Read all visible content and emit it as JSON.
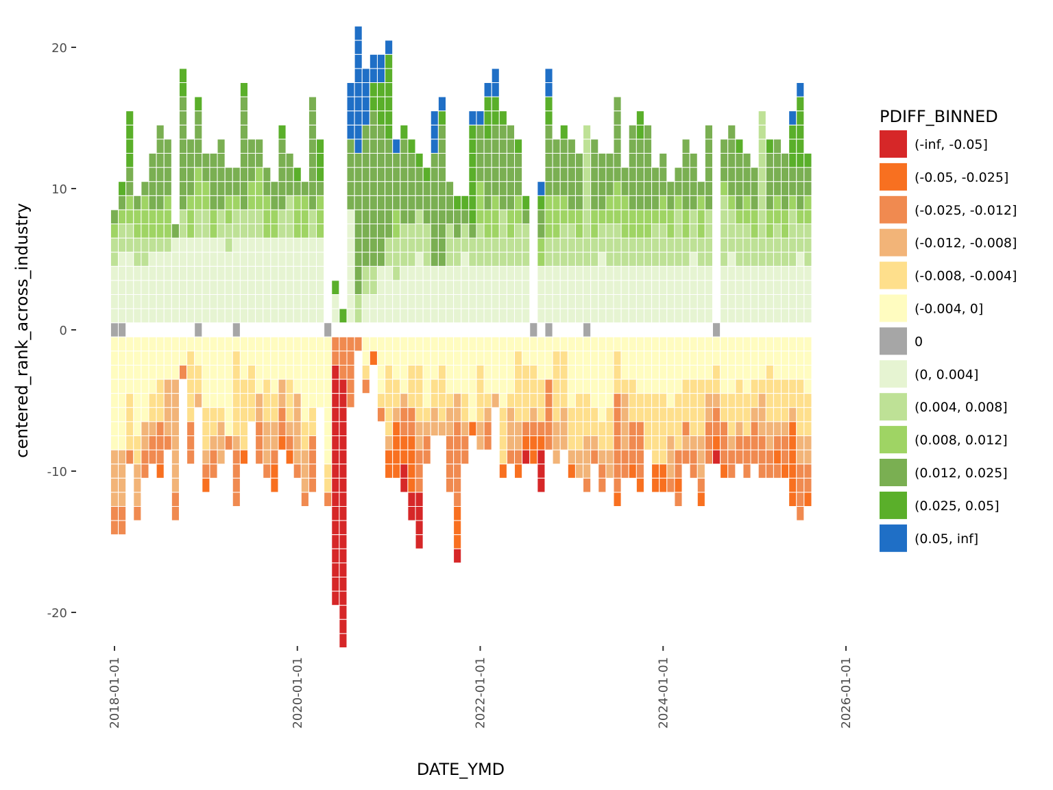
{
  "chart_data": {
    "type": "heatmap",
    "title": "",
    "xlabel": "DATE_YMD",
    "ylabel": "centered_rank_across_industry",
    "x_tick_labels": [
      "2018-01-01",
      "2020-01-01",
      "2022-01-01",
      "2024-01-01",
      "2026-01-01"
    ],
    "y_tick_labels": [
      "20",
      "10",
      "0",
      "-10",
      "-20"
    ],
    "y_ticks": [
      20,
      10,
      0,
      -10,
      -20
    ],
    "xlim": [
      "2018-01-01",
      "2026-01-01"
    ],
    "ylim": [
      -21,
      21
    ],
    "x_start": "2018-01-01",
    "x_end": "2025-08-01",
    "period": "monthly",
    "grid": false,
    "legend": {
      "title": "PDIFF_BINNED",
      "placement": "right",
      "bins": [
        {
          "label": "(-inf, -0.05]",
          "color": "#d62728"
        },
        {
          "label": "(-0.05, -0.025]",
          "color": "#f87020"
        },
        {
          "label": "(-0.025, -0.012]",
          "color": "#f08a50"
        },
        {
          "label": "(-0.012, -0.008]",
          "color": "#f2b478"
        },
        {
          "label": "(-0.008, -0.004]",
          "color": "#fedf8c"
        },
        {
          "label": "(-0.004, 0]",
          "color": "#fffcc0"
        },
        {
          "label": "0",
          "color": "#a6a6a6"
        },
        {
          "label": "(0, 0.004]",
          "color": "#e6f4d2"
        },
        {
          "label": "(0.004, 0.008]",
          "color": "#bee196"
        },
        {
          "label": "(0.008, 0.012]",
          "color": "#9fd464"
        },
        {
          "label": "(0.012, 0.025]",
          "color": "#7aaf52"
        },
        {
          "label": "(0.025, 0.05]",
          "color": "#5aaf2a"
        },
        {
          "label": "(0.05, inf]",
          "color": "#1f6fc6"
        }
      ]
    },
    "note": "Each monthly column stacks one cell per industry. Strings encode cell bins from the centre outward (positive stack upward, negative stack downward). Codes: a=(-inf,-0.05], b=(-0.05,-0.025], c=(-0.025,-0.012], d=(-0.012,-0.008], e=(-0.008,-0.004], f=(-0.004,0], z=0, g=(0,0.004], h=(0.004,0.008], i=(0.008,0.012], j=(0.012,0.025], k=(0.025,0.05], l=(0.05,inf].",
    "code_map": {
      "a": 0,
      "b": 1,
      "c": 2,
      "d": 3,
      "e": 4,
      "f": 5,
      "z": 6,
      "g": 7,
      "h": 8,
      "i": 9,
      "j": 10,
      "k": 11,
      "l": 12
    },
    "columns": [
      {
        "date": "2018-01",
        "zero": 1,
        "pos": "gggghhij",
        "neg": "ffffffffddddcc"
      },
      {
        "date": "2018-02",
        "zero": 1,
        "pos": "ggggghhijk",
        "neg": "ffffffffddddcc"
      },
      {
        "date": "2018-03",
        "zero": 0,
        "pos": "ggggghhiijjkkkk",
        "neg": "ffffeeeec"
      },
      {
        "date": "2018-04",
        "zero": 0,
        "pos": "gggghhiij",
        "neg": "fffffffeedddc"
      },
      {
        "date": "2018-05",
        "zero": 0,
        "pos": "gggghhiiij",
        "neg": "ffffffddcc"
      },
      {
        "date": "2018-06",
        "zero": 0,
        "pos": "ggggghiijjjj",
        "neg": "ffffeedcc"
      },
      {
        "date": "2018-07",
        "zero": 0,
        "pos": "ggggghiijjjjjj",
        "neg": "fffeeecccb"
      },
      {
        "date": "2018-08",
        "zero": 0,
        "pos": "ggggghiiijjjj",
        "neg": "fffddddc"
      },
      {
        "date": "2018-09",
        "zero": 0,
        "pos": "ggggggj",
        "neg": "fffddddddddcc"
      },
      {
        "date": "2018-10",
        "zero": 0,
        "pos": "gggggghhjjjjjjjjkk",
        "neg": "ffc"
      },
      {
        "date": "2018-11",
        "zero": 0,
        "pos": "ggggggiiijjjj",
        "neg": "feeeeeccc"
      },
      {
        "date": "2018-12",
        "zero": 1,
        "pos": "gggggghhiiijjjjk",
        "neg": "ffeed"
      },
      {
        "date": "2019-01",
        "zero": 0,
        "pos": "gggggghhiijj",
        "neg": "fffffeeedcb"
      },
      {
        "date": "2019-02",
        "zero": 0,
        "pos": "ggggggiijjjj",
        "neg": "fffffeedcc"
      },
      {
        "date": "2019-03",
        "zero": 0,
        "pos": "gggggghhjjjjj",
        "neg": "fffffeddd"
      },
      {
        "date": "2019-04",
        "zero": 0,
        "pos": "ggggghhiijj",
        "neg": "fffffffc"
      },
      {
        "date": "2019-05",
        "zero": 1,
        "pos": "gggggghhijj",
        "neg": "feeeeeedcccc"
      },
      {
        "date": "2019-06",
        "zero": 0,
        "pos": "gggggghhjjjjjjjjk",
        "neg": "fffeeeeeb"
      },
      {
        "date": "2019-07",
        "zero": 0,
        "pos": "gggggghhiijjj",
        "neg": "ffeeee"
      },
      {
        "date": "2019-08",
        "zero": 0,
        "pos": "gggggghhiiijj",
        "neg": "ffffddccc"
      },
      {
        "date": "2019-09",
        "zero": 0,
        "pos": "ggggggiiijj",
        "neg": "fffeeedddc"
      },
      {
        "date": "2019-10",
        "zero": 0,
        "pos": "ggggggiijj",
        "neg": "ffffeeddcbb"
      },
      {
        "date": "2019-11",
        "zero": 0,
        "pos": "gggggghhjjjjjk",
        "neg": "fffddccb"
      },
      {
        "date": "2019-12",
        "zero": 0,
        "pos": "gggggghhhjjj",
        "neg": "fffeeedcb"
      },
      {
        "date": "2020-01",
        "zero": 0,
        "pos": "ggggggiiijk",
        "neg": "ffffdddddc"
      },
      {
        "date": "2020-02",
        "zero": 0,
        "pos": "ggggggiiij",
        "neg": "ffffffeedddc"
      },
      {
        "date": "2020-03",
        "zero": 0,
        "pos": "gggggghhjjjjjjjj",
        "neg": "fffffeecccc"
      },
      {
        "date": "2020-04",
        "zero": 0,
        "pos": "ggggggiiijkkk",
        "neg": "fffff"
      },
      {
        "date": "2020-05",
        "zero": 1,
        "pos": "",
        "neg": "fffffffffeec"
      },
      {
        "date": "2020-06",
        "zero": 0,
        "pos": "ggk",
        "neg": "ccaaaaaaaaaaaaaaaaa"
      },
      {
        "date": "2020-07",
        "zero": 0,
        "pos": "k",
        "neg": "cccaaaaaaaaaaaaaaaaaaa"
      },
      {
        "date": "2020-08",
        "zero": 0,
        "pos": "ggggggggjjjjjllll",
        "neg": "ccccc"
      },
      {
        "date": "2020-09",
        "zero": 0,
        "pos": "hhjjjjjjjjjjlllllllll",
        "neg": "c"
      },
      {
        "date": "2020-10",
        "zero": 0,
        "pos": "gghhjjjjjjjjjjllll",
        "neg": "ffec"
      },
      {
        "date": "2020-11",
        "zero": 0,
        "pos": "gghhjjjjjjjjjjjkkll",
        "neg": "fb"
      },
      {
        "date": "2020-12",
        "zero": 0,
        "pos": "ggggjjjjjjjjjjkkkll",
        "neg": "ffffec"
      },
      {
        "date": "2021-01",
        "zero": 0,
        "pos": "gggghhjjjjjjjkkkkkkl",
        "neg": "ffeeeeedbb"
      },
      {
        "date": "2021-02",
        "zero": 0,
        "pos": "ggghhhiijjjjl",
        "neg": "fffeedbbbb"
      },
      {
        "date": "2021-03",
        "zero": 0,
        "pos": "gggghhhjjjjjjk",
        "neg": "ffffdccbbaa"
      },
      {
        "date": "2021-04",
        "zero": 0,
        "pos": "gggghhhjjjjjk",
        "neg": "ffeeeccbbbbaa"
      },
      {
        "date": "2021-05",
        "zero": 0,
        "pos": "ggggghhhjjjk",
        "neg": "ffeeeeddcccaaaa"
      },
      {
        "date": "2021-06",
        "zero": 0,
        "pos": "gggghhhjjjk",
        "neg": "fffffedcc"
      },
      {
        "date": "2021-07",
        "zero": 0,
        "pos": "ggggjjjjjjjjlll",
        "neg": "fffeedd"
      },
      {
        "date": "2021-08",
        "zero": 0,
        "pos": "ggggjjjjjjjjjjkl",
        "neg": "ffeeeed"
      },
      {
        "date": "2021-09",
        "zero": 0,
        "pos": "gggghhhjjj",
        "neg": "ffffeddcccc"
      },
      {
        "date": "2021-10",
        "zero": 0,
        "pos": "gggghhjjk",
        "neg": "ffffddccccccbbba"
      },
      {
        "date": "2021-11",
        "zero": 0,
        "pos": "ggggghhjk",
        "neg": "ffffeedcc"
      },
      {
        "date": "2021-12",
        "zero": 0,
        "pos": "gggghhjkkkkkkkl",
        "neg": "ffffffb"
      },
      {
        "date": "2022-01",
        "zero": 0,
        "pos": "gggghhhiiijjjjl",
        "neg": "ffeeeedd"
      },
      {
        "date": "2022-02",
        "zero": 0,
        "pos": "gggghhiijjjjjkkkl",
        "neg": "ffffedcc"
      },
      {
        "date": "2022-03",
        "zero": 0,
        "pos": "gggghhiiijjjjjkkll",
        "neg": "ffffd"
      },
      {
        "date": "2022-04",
        "zero": 0,
        "pos": "gggghhhhjjjjjjk",
        "neg": "fffffeeeeb"
      },
      {
        "date": "2022-05",
        "zero": 0,
        "pos": "gggghhiijjjjjj",
        "neg": "ffffedddc"
      },
      {
        "date": "2022-06",
        "zero": 0,
        "pos": "gggghhhiijjjk",
        "neg": "feeeeeddcb"
      },
      {
        "date": "2022-07",
        "zero": 0,
        "pos": "gggghhhjk",
        "neg": "ffeeeecba"
      },
      {
        "date": "2022-08",
        "zero": 1,
        "pos": "",
        "neg": "ffeeedcbb"
      },
      {
        "date": "2022-09",
        "zero": 0,
        "pos": "ggggiijjkl",
        "neg": "fffeeecbaaa"
      },
      {
        "date": "2022-10",
        "zero": 1,
        "pos": "gggghhiiijjjjjkkll",
        "neg": "fffccccc"
      },
      {
        "date": "2022-11",
        "zero": 0,
        "pos": "gggghhiiijjjj",
        "neg": "feeeeeddd"
      },
      {
        "date": "2022-12",
        "zero": 0,
        "pos": "gggghhhiijjjjk",
        "neg": "feeeeddd"
      },
      {
        "date": "2023-01",
        "zero": 0,
        "pos": "gggghhhijjjjj",
        "neg": "fffffeeedb"
      },
      {
        "date": "2023-02",
        "zero": 0,
        "pos": "gggghhiijjjj",
        "neg": "ffffeeeedd"
      },
      {
        "date": "2023-03",
        "zero": 1,
        "pos": "gggghhhhhhhhhh",
        "neg": "ffffeeedddc"
      },
      {
        "date": "2023-04",
        "zero": 0,
        "pos": "gggghhiijjjjj",
        "neg": "fffffeedc"
      },
      {
        "date": "2023-05",
        "zero": 0,
        "pos": "ggggghhijjjj",
        "neg": "ffffffeedcc"
      },
      {
        "date": "2023-06",
        "zero": 0,
        "pos": "gggghhhiijjj",
        "neg": "fffffeeedd"
      },
      {
        "date": "2023-07",
        "zero": 0,
        "pos": "gggghhhiiijjjjjj",
        "neg": "feeecccccccb"
      },
      {
        "date": "2023-08",
        "zero": 0,
        "pos": "gggghhiiijj",
        "neg": "fffeddddcc"
      },
      {
        "date": "2023-09",
        "zero": 0,
        "pos": "gggghhiijjjjjj",
        "neg": "fffeeecccb"
      },
      {
        "date": "2023-10",
        "zero": 0,
        "pos": "gggghhiijjjjjkk",
        "neg": "ffffeeccccb"
      },
      {
        "date": "2023-11",
        "zero": 0,
        "pos": "gggghhiijjjjjj",
        "neg": "ffffeeee"
      },
      {
        "date": "2023-12",
        "zero": 0,
        "pos": "gggghhhijjj",
        "neg": "ffffeeeeebb"
      },
      {
        "date": "2024-01",
        "zero": 0,
        "pos": "gggghhhiijjj",
        "neg": "ffffeeeeebb"
      },
      {
        "date": "2024-02",
        "zero": 0,
        "pos": "gggghhiijj",
        "neg": "fffffeedddc"
      },
      {
        "date": "2024-03",
        "zero": 0,
        "pos": "gggghhhhijj",
        "neg": "ffffeeeeccbc"
      },
      {
        "date": "2024-04",
        "zero": 0,
        "pos": "gggghhiijjjjj",
        "neg": "fffeeecdc"
      },
      {
        "date": "2024-05",
        "zero": 0,
        "pos": "ggggghhhjjjj",
        "neg": "fffeeeedcc"
      },
      {
        "date": "2024-06",
        "zero": 0,
        "pos": "gggghhiiij",
        "neg": "fffeeeedddcb"
      },
      {
        "date": "2024-07",
        "zero": 0,
        "pos": "gggghhhhjjjjjj",
        "neg": "fffeddccc"
      },
      {
        "date": "2024-08",
        "zero": 1,
        "pos": "",
        "neg": "ffeedccba"
      },
      {
        "date": "2024-09",
        "zero": 0,
        "pos": "gggghhhhhijjj",
        "neg": "ffffeecccb"
      },
      {
        "date": "2024-10",
        "zero": 0,
        "pos": "ggggghhhijjjjj",
        "neg": "ffffeeedcc"
      },
      {
        "date": "2024-11",
        "zero": 0,
        "pos": "gggghhhijjjjk",
        "neg": "fffeeedcc"
      },
      {
        "date": "2024-12",
        "zero": 0,
        "pos": "gggghhhiijjj",
        "neg": "ffffeeeccc"
      },
      {
        "date": "2025-01",
        "zero": 0,
        "pos": "gggghhiijjj",
        "neg": "fffeedccc"
      },
      {
        "date": "2025-02",
        "zero": 0,
        "pos": "gggghhhhhhhhhhh",
        "neg": "fffedddccc"
      },
      {
        "date": "2025-03",
        "zero": 0,
        "pos": "gggghhiijjjjk",
        "neg": "ffeeeeddcc"
      },
      {
        "date": "2025-04",
        "zero": 0,
        "pos": "gggghhhiijjjj",
        "neg": "fffeeedcbc"
      },
      {
        "date": "2025-05",
        "zero": 0,
        "pos": "gggghhiijjjj",
        "neg": "fffeeedccb"
      },
      {
        "date": "2025-06",
        "zero": 0,
        "pos": "gggghhhhijjkkkl",
        "neg": "fffeedbbbbbb"
      },
      {
        "date": "2025-07",
        "zero": 0,
        "pos": "ggggghhijjjkkkkkl",
        "neg": "fffeeeeddcccc"
      },
      {
        "date": "2025-08",
        "zero": 0,
        "pos": "gggghhhiijjk",
        "neg": "ffffeeeddccb"
      }
    ]
  }
}
